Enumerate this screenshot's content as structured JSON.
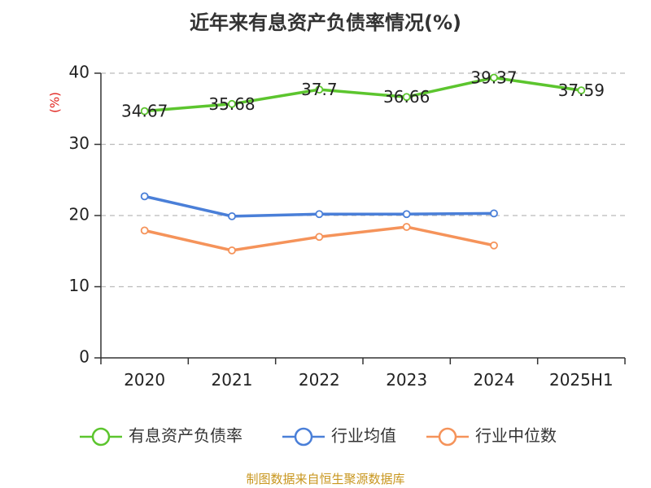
{
  "chart_data": {
    "type": "line",
    "title": "近年来有息资产负债率情况(%)",
    "ylabel": "(%)",
    "xlabel": "",
    "categories": [
      "2020",
      "2021",
      "2022",
      "2023",
      "2024",
      "2025H1"
    ],
    "ylim": [
      0,
      40
    ],
    "yticks": [
      0,
      10,
      20,
      30,
      40
    ],
    "grid": "horizontal dashed",
    "legend_position": "bottom",
    "series": [
      {
        "name": "有息资产负债率",
        "color": "#5cc52e",
        "values": [
          34.67,
          35.68,
          37.7,
          36.66,
          39.37,
          37.59
        ],
        "labels": [
          "34.67",
          "35.68",
          "37.7",
          "36.66",
          "39.37",
          "37.59"
        ]
      },
      {
        "name": "行业均值",
        "color": "#4a7fd8",
        "values": [
          22.7,
          19.9,
          20.2,
          20.2,
          20.3,
          null
        ]
      },
      {
        "name": "行业中位数",
        "color": "#f5935a",
        "values": [
          17.9,
          15.1,
          17.0,
          18.4,
          15.8,
          null
        ]
      }
    ]
  },
  "source": "制图数据来自恒生聚源数据库"
}
